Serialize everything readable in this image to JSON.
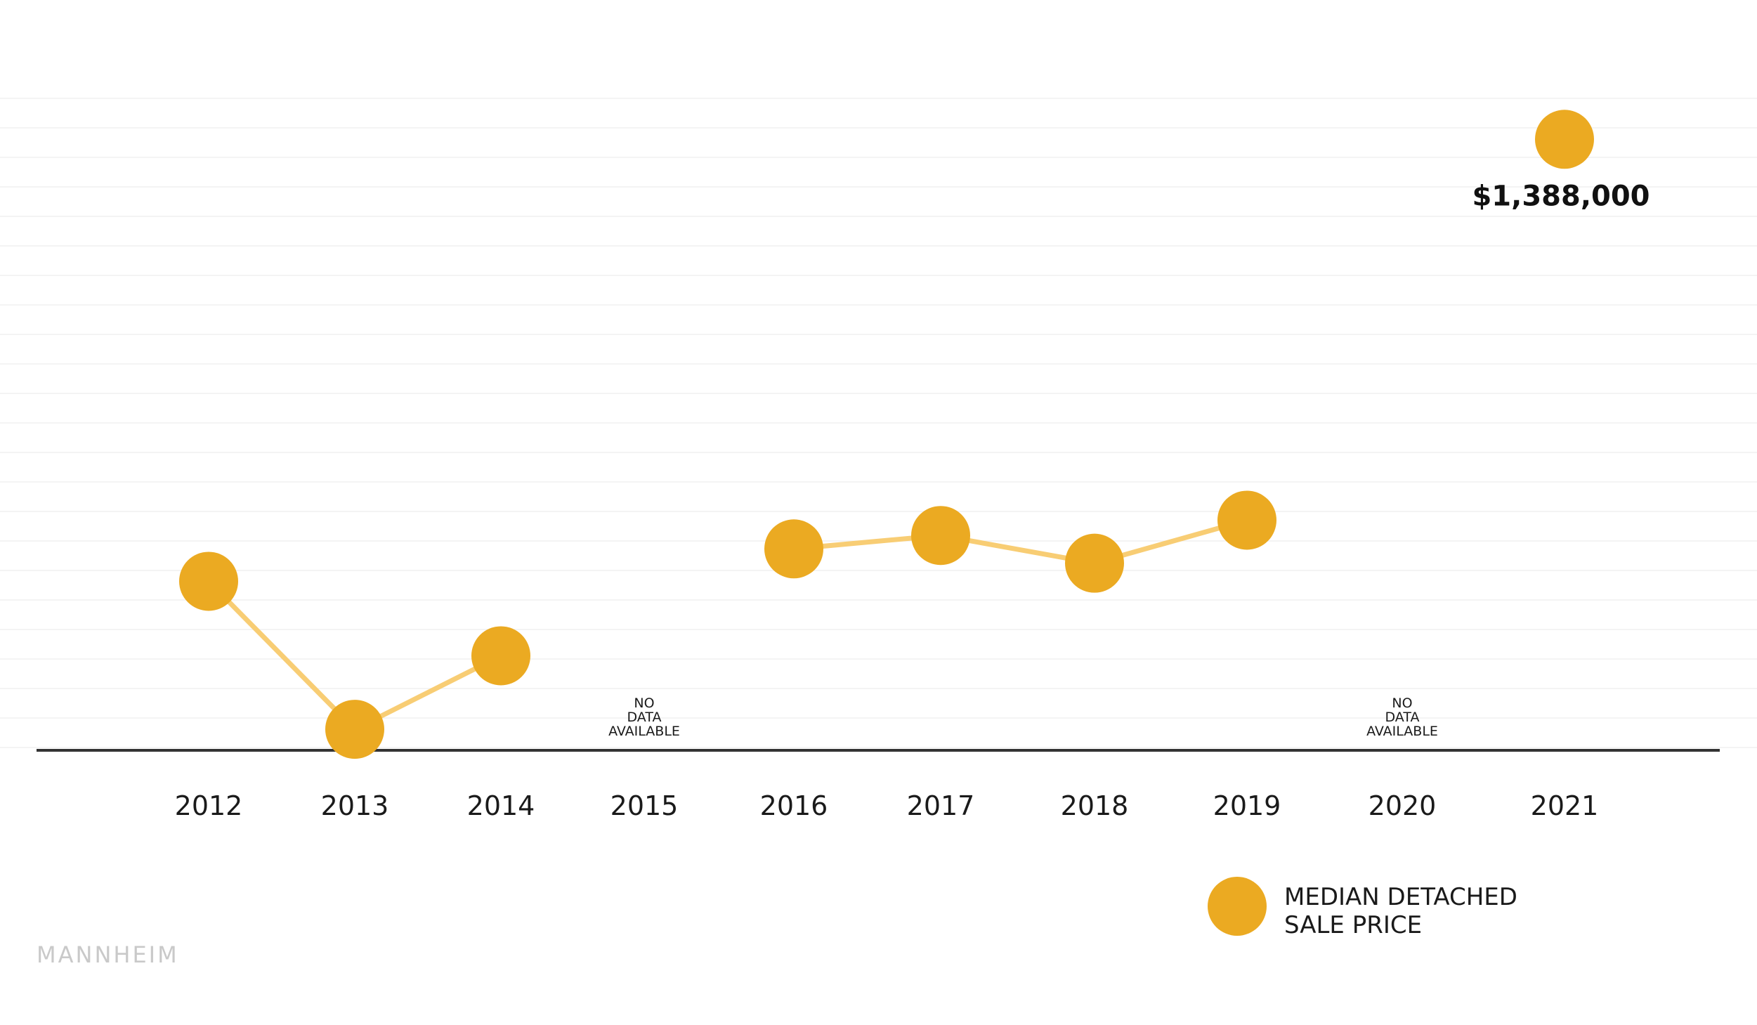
{
  "chart_data": {
    "type": "line",
    "categories": [
      "2012",
      "2013",
      "2014",
      "2015",
      "2016",
      "2017",
      "2018",
      "2019",
      "2020",
      "2021"
    ],
    "series": [
      {
        "name": "MEDIAN DETACHED SALE PRICE",
        "values": [
          925000,
          770000,
          847000,
          null,
          959000,
          973000,
          944000,
          989000,
          null,
          1388000
        ],
        "color": "#EBAA22",
        "line_color": "#F8CD74"
      }
    ],
    "ylim": [
      748000,
      1450000
    ],
    "grid": true,
    "legend_position": "bottom-right",
    "annotations": [
      {
        "category": "2021",
        "text": "$1,388,000"
      },
      {
        "category": "2015",
        "lines": [
          "NO",
          "DATA",
          "AVAILABLE"
        ]
      },
      {
        "category": "2020",
        "lines": [
          "NO",
          "DATA",
          "AVAILABLE"
        ]
      }
    ],
    "legend": {
      "lines": [
        "MEDIAN DETACHED",
        "SALE PRICE"
      ]
    },
    "watermark": "MANNHEIM"
  }
}
